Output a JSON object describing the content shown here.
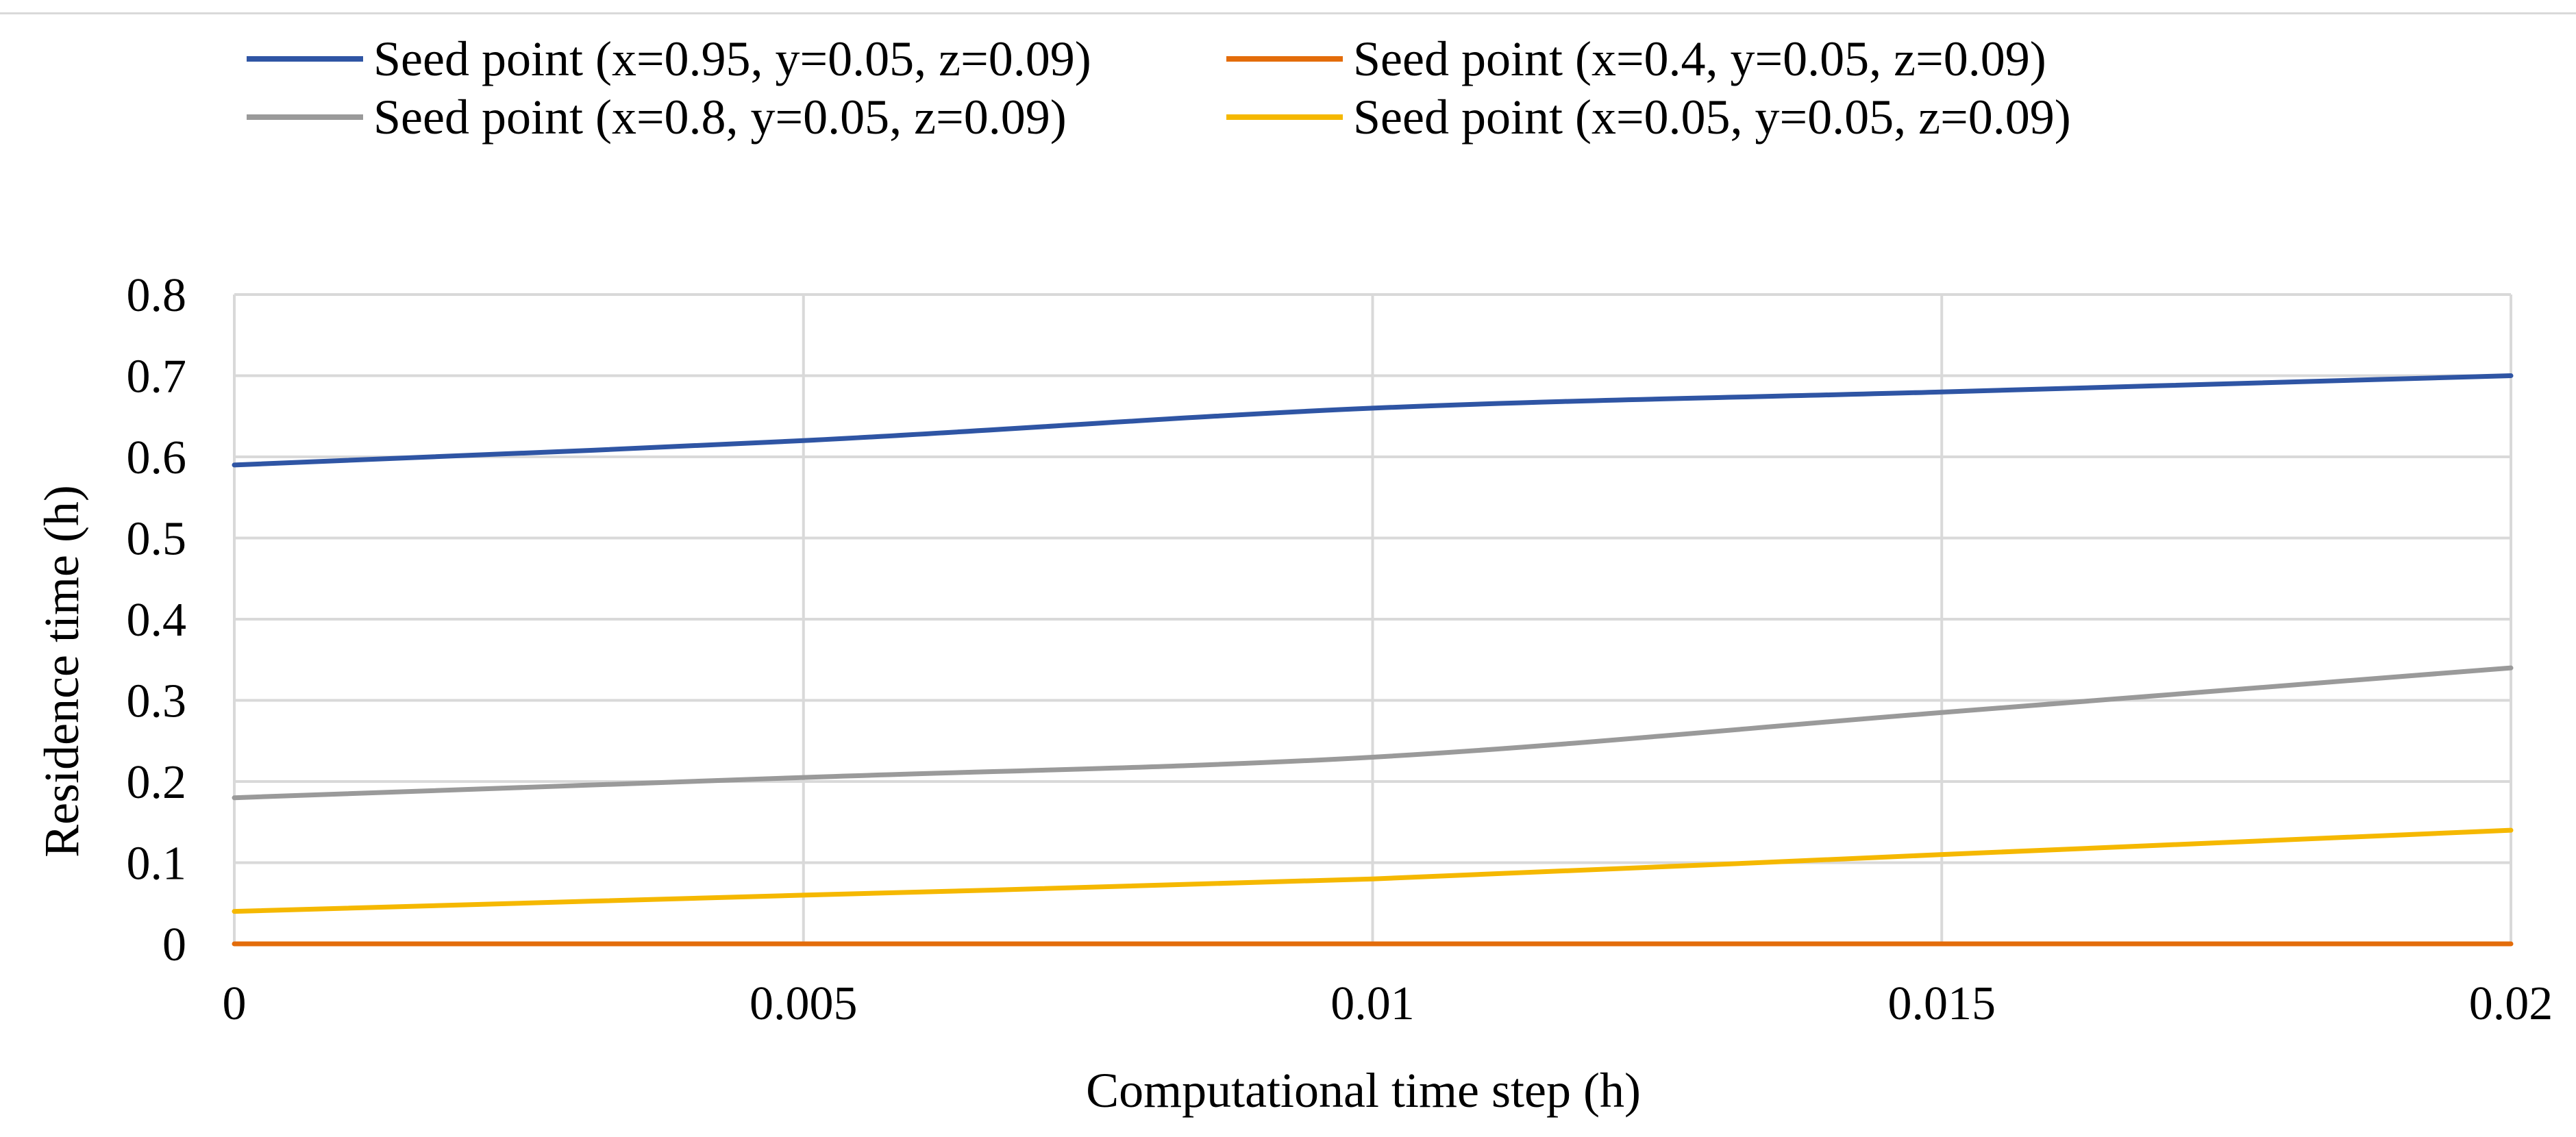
{
  "chart_data": {
    "type": "line",
    "title": "",
    "xlabel": "Computational time step (h)",
    "ylabel": "Residence time (h)",
    "xlim": [
      0,
      0.02
    ],
    "ylim": [
      0,
      0.8
    ],
    "x_ticks": [
      0,
      0.005,
      0.01,
      0.015,
      0.02
    ],
    "x_tick_labels": [
      "0",
      "0.005",
      "0.01",
      "0.015",
      "0.02"
    ],
    "y_ticks": [
      0,
      0.1,
      0.2,
      0.3,
      0.4,
      0.5,
      0.6,
      0.7,
      0.8
    ],
    "y_tick_labels": [
      "0",
      "0.1",
      "0.2",
      "0.3",
      "0.4",
      "0.5",
      "0.6",
      "0.7",
      "0.8"
    ],
    "grid": true,
    "legend_position": "top",
    "series": [
      {
        "name": "Seed point (x=0.95, y=0.05, z=0.09)",
        "color": "#2f55a4",
        "x": [
          0,
          0.005,
          0.01,
          0.015,
          0.02
        ],
        "y": [
          0.59,
          0.62,
          0.66,
          0.68,
          0.7
        ]
      },
      {
        "name": "Seed point (x=0.4, y=0.05, z=0.09)",
        "color": "#e36c0a",
        "x": [
          0,
          0.005,
          0.01,
          0.015,
          0.02
        ],
        "y": [
          0,
          0,
          0,
          0,
          0
        ]
      },
      {
        "name": "Seed point (x=0.8, y=0.05, z=0.09)",
        "color": "#9a9a9a",
        "x": [
          0,
          0.005,
          0.01,
          0.015,
          0.02
        ],
        "y": [
          0.18,
          0.205,
          0.23,
          0.285,
          0.34
        ]
      },
      {
        "name": "Seed point (x=0.05, y=0.05, z=0.09)",
        "color": "#f5b800",
        "x": [
          0,
          0.005,
          0.01,
          0.015,
          0.02
        ],
        "y": [
          0.04,
          0.06,
          0.08,
          0.11,
          0.14
        ]
      }
    ]
  }
}
